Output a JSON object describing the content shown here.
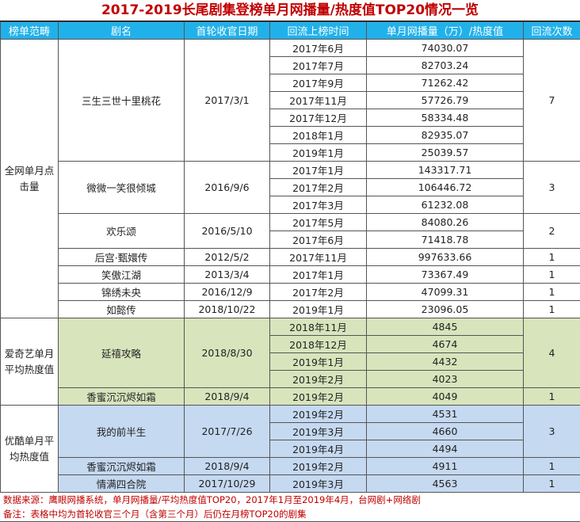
{
  "title": "2017-2019长尾剧集登榜单月网播量/热度值TOP20情况一览",
  "headers": [
    "榜单范畴",
    "剧名",
    "首轮收官日期",
    "回流上榜时间",
    "单月网播量（万）/热度值",
    "回流次数"
  ],
  "colors": {
    "header_bg": "#21b1ea",
    "title": "#c00000",
    "iqiyi_bg": "#d8e4bc",
    "youku_bg": "#c5d9f1"
  },
  "groups": [
    {
      "category": "全网单月点击量",
      "style": "w",
      "shows": [
        {
          "name": "三生三世十里桃花",
          "finale": "2017/3/1",
          "count": "7",
          "rows": [
            [
              "2017年6月",
              "74030.07"
            ],
            [
              "2017年7月",
              "82703.24"
            ],
            [
              "2017年9月",
              "71262.42"
            ],
            [
              "2017年11月",
              "57726.79"
            ],
            [
              "2017年12月",
              "58334.48"
            ],
            [
              "2018年1月",
              "82935.07"
            ],
            [
              "2019年1月",
              "25039.57"
            ]
          ]
        },
        {
          "name": "微微一笑很倾城",
          "finale": "2016/9/6",
          "count": "3",
          "rows": [
            [
              "2017年1月",
              "143317.71"
            ],
            [
              "2017年2月",
              "106446.72"
            ],
            [
              "2017年3月",
              "61232.08"
            ]
          ]
        },
        {
          "name": "欢乐颂",
          "finale": "2016/5/10",
          "count": "2",
          "rows": [
            [
              "2017年5月",
              "84080.26"
            ],
            [
              "2017年6月",
              "71418.78"
            ]
          ]
        },
        {
          "name": "后宫·甄嬛传",
          "finale": "2012/5/2",
          "count": "1",
          "rows": [
            [
              "2017年11月",
              "997633.66"
            ]
          ]
        },
        {
          "name": "笑傲江湖",
          "finale": "2013/3/4",
          "count": "1",
          "rows": [
            [
              "2017年1月",
              "73367.49"
            ]
          ]
        },
        {
          "name": "锦绣未央",
          "finale": "2016/12/9",
          "count": "1",
          "rows": [
            [
              "2017年2月",
              "47099.31"
            ]
          ]
        },
        {
          "name": "如懿传",
          "finale": "2018/10/22",
          "count": "1",
          "rows": [
            [
              "2019年1月",
              "23096.05"
            ]
          ]
        }
      ]
    },
    {
      "category": "爱奇艺单月平均热度值",
      "style": "g",
      "shows": [
        {
          "name": "延禧攻略",
          "finale": "2018/8/30",
          "count": "4",
          "rows": [
            [
              "2018年11月",
              "4845"
            ],
            [
              "2018年12月",
              "4674"
            ],
            [
              "2019年1月",
              "4432"
            ],
            [
              "2019年2月",
              "4023"
            ]
          ]
        },
        {
          "name": "香蜜沉沉烬如霜",
          "finale": "2018/9/4",
          "count": "1",
          "rows": [
            [
              "2019年2月",
              "4049"
            ]
          ]
        }
      ]
    },
    {
      "category": "优酷单月平均热度值",
      "style": "b",
      "shows": [
        {
          "name": "我的前半生",
          "finale": "2017/7/26",
          "count": "3",
          "rows": [
            [
              "2019年2月",
              "4531"
            ],
            [
              "2019年3月",
              "4660"
            ],
            [
              "2019年4月",
              "4494"
            ]
          ]
        },
        {
          "name": "香蜜沉沉烬如霜",
          "finale": "2018/9/4",
          "count": "1",
          "rows": [
            [
              "2019年2月",
              "4911"
            ]
          ]
        },
        {
          "name": "情满四合院",
          "finale": "2017/10/29",
          "count": "1",
          "rows": [
            [
              "2019年3月",
              "4563"
            ]
          ]
        }
      ]
    }
  ],
  "notes": [
    "数据来源：鹰眼网播系统，单月网播量/平均热度值TOP20，2017年1月至2019年4月，台网剧+网络剧",
    "备注：表格中均为首轮收官三个月（含第三个月）后仍在月榜TOP20的剧集"
  ]
}
